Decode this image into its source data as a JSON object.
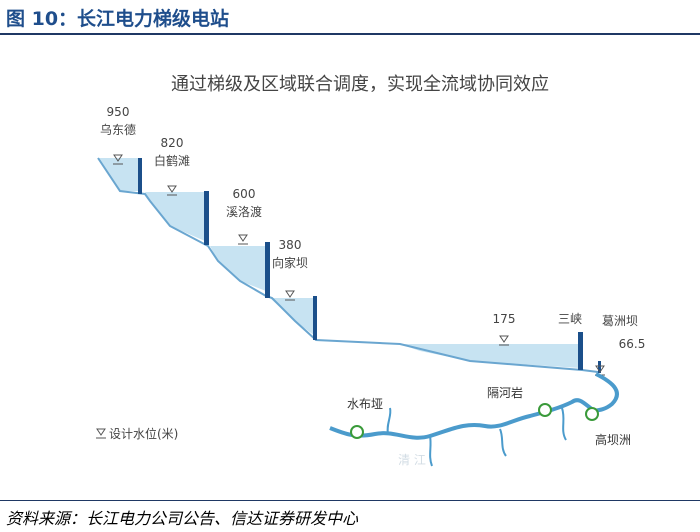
{
  "figure": {
    "title": "图 10：长江电力梯级电站",
    "subtitle": "通过梯级及区域联合调度，实现全流域协同效应",
    "source": "资料来源：长江电力公司公告、信达证券研发中心"
  },
  "stations": [
    {
      "name": "乌东德",
      "level": "950"
    },
    {
      "name": "白鹤滩",
      "level": "820"
    },
    {
      "name": "溪洛渡",
      "level": "600"
    },
    {
      "name": "向家坝",
      "level": "380"
    },
    {
      "name": "三峡",
      "level": "175"
    },
    {
      "name": "葛洲坝",
      "level": "66.5"
    }
  ],
  "legend": {
    "label": "设计水位(米)"
  },
  "map": {
    "labels": [
      "水布垭",
      "隔河岩",
      "高坝洲"
    ],
    "river_label": "清 江"
  },
  "colors": {
    "title": "#1f4e8c",
    "water": "#c7e3f2",
    "profile": "#6aa6d0",
    "dam": "#1b4f8a",
    "river": "#4b9bcc"
  }
}
